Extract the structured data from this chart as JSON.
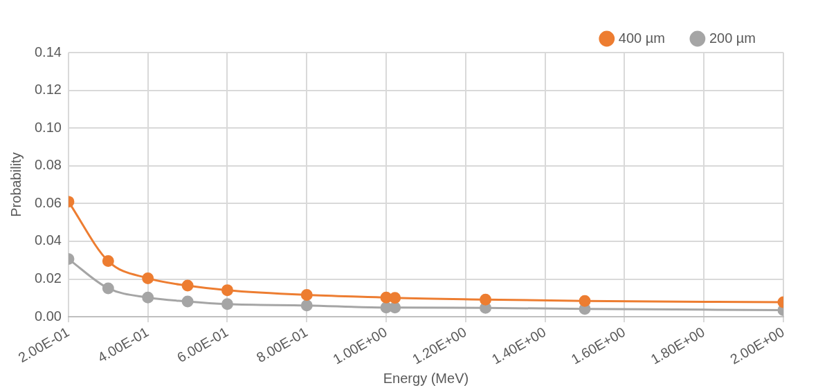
{
  "chart_data": {
    "type": "line",
    "xlabel": "Energy (MeV)",
    "ylabel": "Probability",
    "xlim": [
      0.2,
      2.0
    ],
    "xticks": [
      {
        "value": 0.2,
        "label": "2.00E-01"
      },
      {
        "value": 0.4,
        "label": "4.00E-01"
      },
      {
        "value": 0.6,
        "label": "6.00E-01"
      },
      {
        "value": 0.8,
        "label": "8.00E-01"
      },
      {
        "value": 1.0,
        "label": "1.00E+00"
      },
      {
        "value": 1.2,
        "label": "1.20E+00"
      },
      {
        "value": 1.4,
        "label": "1.40E+00"
      },
      {
        "value": 1.6,
        "label": "1.60E+00"
      },
      {
        "value": 1.8,
        "label": "1.80E+00"
      },
      {
        "value": 2.0,
        "label": "2.00E+00"
      }
    ],
    "ylim": [
      0,
      0.14
    ],
    "yticks": [
      {
        "value": 0,
        "label": "0.00"
      },
      {
        "value": 0.02,
        "label": "0.02"
      },
      {
        "value": 0.04,
        "label": "0.04"
      },
      {
        "value": 0.06,
        "label": "0.06"
      },
      {
        "value": 0.08,
        "label": "0.08"
      },
      {
        "value": 0.1,
        "label": "0.10"
      },
      {
        "value": 0.12,
        "label": "0.12"
      },
      {
        "value": 0.14,
        "label": "0.14"
      }
    ],
    "x": [
      0.2,
      0.3,
      0.4,
      0.5,
      0.6,
      0.8,
      1.0,
      1.022,
      1.25,
      1.5,
      2.0
    ],
    "series": [
      {
        "name": "400 µm",
        "color": "#ed7d31",
        "values": [
          0.061,
          0.0295,
          0.0204,
          0.0165,
          0.0141,
          0.0116,
          0.0102,
          0.01,
          0.0091,
          0.0084,
          0.0077
        ]
      },
      {
        "name": "200 µm",
        "color": "#a5a5a5",
        "values": [
          0.0306,
          0.0151,
          0.0102,
          0.0081,
          0.0067,
          0.006,
          0.0049,
          0.0049,
          0.0047,
          0.0042,
          0.0035
        ]
      }
    ],
    "grid": true,
    "legend": "top right",
    "marker": "circle",
    "line_style": "solid"
  }
}
